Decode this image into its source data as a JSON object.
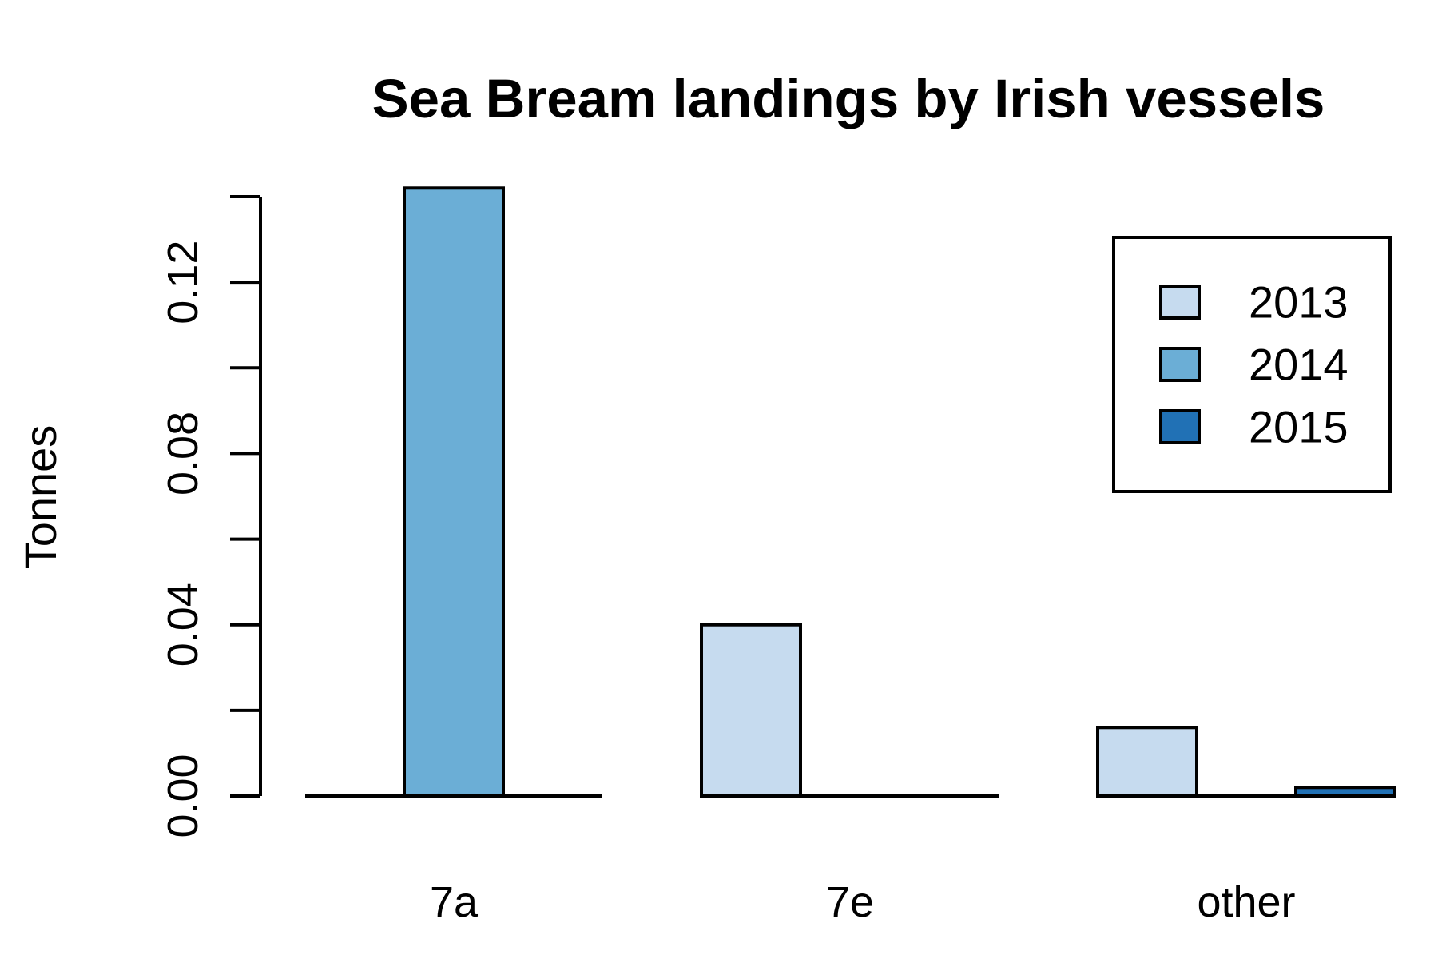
{
  "chart_data": {
    "type": "bar",
    "title": "Sea Bream landings by Irish vessels",
    "xlabel": "",
    "ylabel": "Tonnes",
    "categories": [
      "7a",
      "7e",
      "other"
    ],
    "series": [
      {
        "name": "2013",
        "color": "#c6dbef",
        "values": [
          0.0,
          0.04,
          0.016
        ]
      },
      {
        "name": "2014",
        "color": "#6baed6",
        "values": [
          0.142,
          0.0,
          0.0
        ]
      },
      {
        "name": "2015",
        "color": "#2171b5",
        "values": [
          0.0,
          0.0,
          0.002
        ]
      }
    ],
    "ylim": [
      0,
      0.14
    ],
    "yticks": [
      0.0,
      0.02,
      0.04,
      0.06,
      0.08,
      0.1,
      0.12,
      0.14
    ],
    "ytick_labels": [
      "0.00",
      "",
      "0.04",
      "",
      "0.08",
      "",
      "0.12",
      ""
    ],
    "grid": false,
    "legend_position": "top-right",
    "grouping": "beside"
  }
}
